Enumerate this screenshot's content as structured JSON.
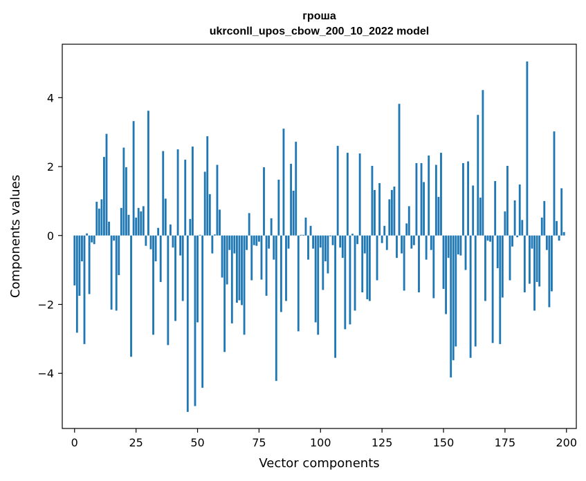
{
  "chart_data": {
    "type": "bar",
    "title_line1": "гроша",
    "title_line2": "ukrconll_upos_cbow_200_10_2022 model",
    "xlabel": "Vector components",
    "ylabel": "Components values",
    "xlim": [
      -5,
      204
    ],
    "ylim": [
      -5.6,
      5.55
    ],
    "xticks": [
      0,
      25,
      50,
      75,
      100,
      125,
      150,
      175,
      200
    ],
    "xtick_labels": [
      "0",
      "25",
      "50",
      "75",
      "100",
      "125",
      "150",
      "175",
      "200"
    ],
    "yticks": [
      -4,
      -2,
      0,
      2,
      4
    ],
    "ytick_labels": [
      "−4",
      "−2",
      "0",
      "2",
      "4"
    ],
    "grid": false,
    "bar_color": "#1f77b4",
    "values": [
      -1.45,
      -2.82,
      -1.75,
      -0.75,
      -3.15,
      0.06,
      -1.7,
      -0.2,
      -0.25,
      0.98,
      0.78,
      1.05,
      2.28,
      2.95,
      0.4,
      -2.15,
      -0.15,
      -2.18,
      -1.15,
      0.8,
      2.55,
      1.98,
      0.6,
      -3.52,
      3.32,
      0.52,
      0.8,
      0.7,
      0.85,
      -0.3,
      3.62,
      -0.4,
      -2.88,
      -0.75,
      0.22,
      -1.35,
      2.45,
      1.07,
      -3.18,
      0.32,
      -0.35,
      -2.48,
      2.5,
      -0.58,
      -1.9,
      2.2,
      -5.12,
      0.48,
      2.58,
      -4.95,
      -2.52,
      0.02,
      -4.42,
      1.85,
      2.88,
      1.2,
      -0.52,
      0.03,
      2.05,
      0.75,
      -1.22,
      -3.38,
      -1.42,
      -0.42,
      -2.55,
      -0.52,
      -1.95,
      -1.88,
      -2.02,
      -2.88,
      -0.42,
      0.65,
      -1.3,
      -0.28,
      -0.3,
      -0.18,
      -1.28,
      1.98,
      -1.75,
      -0.38,
      0.5,
      -0.7,
      -4.22,
      1.62,
      -2.22,
      3.1,
      -1.9,
      -0.38,
      2.08,
      1.3,
      2.72,
      -2.78,
      0.02,
      0.02,
      0.52,
      -0.7,
      0.28,
      -0.38,
      -2.52,
      -2.88,
      -0.35,
      -1.58,
      -0.75,
      -1.1,
      -0.02,
      -0.28,
      -3.55,
      2.6,
      -0.35,
      -0.65,
      -2.72,
      2.4,
      -2.58,
      0.05,
      -2.18,
      -0.25,
      2.38,
      -1.65,
      -0.52,
      -1.85,
      -1.9,
      2.02,
      1.32,
      -1.3,
      1.52,
      -0.22,
      0.28,
      -0.42,
      1.05,
      1.32,
      1.42,
      -0.65,
      3.82,
      -0.52,
      -1.6,
      0.35,
      0.85,
      -0.38,
      -0.28,
      2.1,
      -1.65,
      2.1,
      1.55,
      -0.7,
      2.32,
      -0.42,
      -1.82,
      2.05,
      1.12,
      2.4,
      -1.55,
      -2.28,
      -0.65,
      -4.12,
      -3.62,
      -3.22,
      -0.55,
      -0.58,
      2.1,
      -1.0,
      2.15,
      -3.55,
      1.45,
      -3.22,
      3.5,
      1.1,
      4.22,
      -1.9,
      -0.15,
      -0.18,
      -3.12,
      1.58,
      -0.95,
      -3.15,
      -1.8,
      0.7,
      2.02,
      -1.3,
      -0.32,
      1.02,
      -0.05,
      1.48,
      0.45,
      -1.65,
      5.05,
      -1.4,
      -0.38,
      -2.18,
      -1.35,
      -1.48,
      0.52,
      1.0,
      -0.42,
      -2.08,
      -1.62,
      3.02,
      0.42,
      -0.15,
      1.37,
      0.1
    ]
  }
}
